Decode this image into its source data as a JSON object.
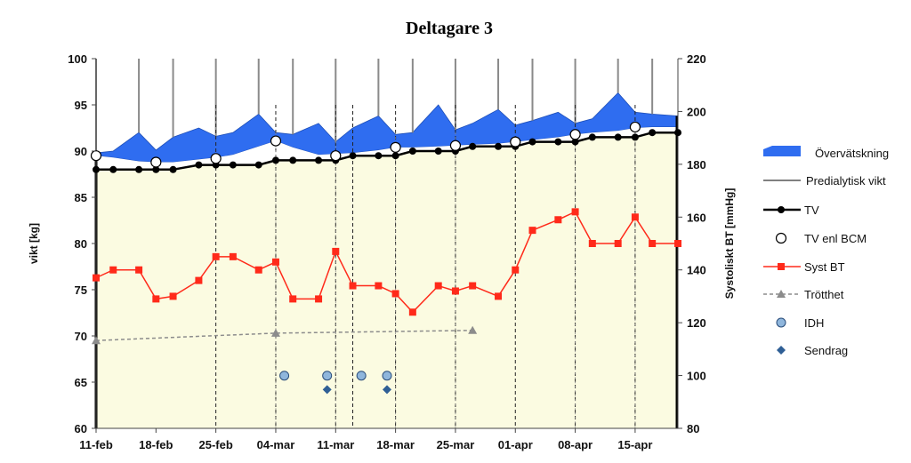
{
  "chart_data": {
    "type": "line",
    "title": "Deltagare 3",
    "xlabel": "",
    "ylabel": "vikt [kg]",
    "y2label": "Systoliskt BT [mmHg]",
    "xlim_days": [
      0,
      68
    ],
    "x_tick_labels": [
      "11-feb",
      "18-feb",
      "25-feb",
      "04-mar",
      "11-mar",
      "18-mar",
      "25-mar",
      "01-apr",
      "08-apr",
      "15-apr"
    ],
    "x_tick_days": [
      0,
      7,
      14,
      21,
      28,
      35,
      42,
      49,
      56,
      63
    ],
    "ylim": [
      60,
      100
    ],
    "y_ticks": [
      60,
      65,
      70,
      75,
      80,
      85,
      90,
      95,
      100
    ],
    "y2lim": [
      80,
      220
    ],
    "y2_ticks": [
      80,
      100,
      120,
      140,
      160,
      180,
      200,
      220
    ],
    "legend_position": "right",
    "series": [
      {
        "name": "Övervätskning",
        "kind": "area",
        "color": "#2f6df0",
        "x": [
          0,
          2,
          5,
          7,
          9,
          12,
          14,
          16,
          19,
          21,
          23,
          26,
          28,
          30,
          33,
          35,
          37,
          40,
          42,
          44,
          47,
          49,
          51,
          54,
          56,
          58,
          61,
          63,
          65,
          68
        ],
        "upper": [
          89.8,
          90,
          92,
          90.1,
          91.5,
          92.5,
          91.6,
          92,
          94,
          92,
          91.8,
          93,
          91,
          92.5,
          93.8,
          91.8,
          92,
          95,
          92.3,
          93,
          94.5,
          92.8,
          93.3,
          94.2,
          93,
          93.5,
          96.3,
          94.2,
          94,
          93.8
        ],
        "lower": [
          89.5,
          89.3,
          88.9,
          88.8,
          88.8,
          89.1,
          89.3,
          89.6,
          90.5,
          91.1,
          90.4,
          89.6,
          89.7,
          89.8,
          90.1,
          90.4,
          90.4,
          90.5,
          90.6,
          90.7,
          90.8,
          91,
          91.2,
          91.5,
          91.8,
          92,
          92.2,
          92.5,
          92.6,
          92.6
        ]
      },
      {
        "name": "Predialytisk vikt",
        "kind": "spikes",
        "color": "#8a8a8a",
        "x": [
          0,
          5,
          9,
          14,
          19,
          23,
          28,
          33,
          37,
          42,
          47,
          51,
          56,
          61,
          65
        ],
        "y": [
          100,
          100,
          100,
          100,
          100,
          100,
          100,
          100,
          100,
          100,
          100,
          100,
          100,
          100,
          100
        ]
      },
      {
        "name": "TV",
        "kind": "line",
        "color": "#000000",
        "x": [
          0,
          2,
          5,
          7,
          9,
          12,
          14,
          16,
          19,
          21,
          23,
          26,
          28,
          30,
          33,
          35,
          37,
          40,
          42,
          44,
          47,
          49,
          51,
          54,
          56,
          58,
          61,
          63,
          65,
          68
        ],
        "y": [
          88,
          88,
          88,
          88,
          88,
          88.5,
          88.5,
          88.5,
          88.5,
          89,
          89,
          89,
          89,
          89.5,
          89.5,
          89.5,
          90,
          90,
          90,
          90.5,
          90.5,
          90.5,
          91,
          91,
          91,
          91.5,
          91.5,
          91.5,
          92,
          92
        ]
      },
      {
        "name": "TV enl BCM",
        "kind": "markers",
        "color": "#ffffff",
        "x": [
          0,
          7,
          14,
          21,
          28,
          35,
          42,
          49,
          56,
          63
        ],
        "y": [
          89.5,
          88.8,
          89.2,
          91.1,
          89.5,
          90.4,
          90.6,
          91,
          91.8,
          92.6
        ]
      },
      {
        "name": "Syst BT",
        "kind": "line",
        "axis": "right",
        "color": "#ff2a1a",
        "x": [
          0,
          2,
          5,
          7,
          9,
          12,
          14,
          16,
          19,
          21,
          23,
          26,
          28,
          30,
          33,
          35,
          37,
          40,
          42,
          44,
          47,
          49,
          51,
          54,
          56,
          58,
          61,
          63,
          65,
          68
        ],
        "y": [
          137,
          140,
          140,
          129,
          130,
          136,
          145,
          145,
          140,
          143,
          129,
          129,
          147,
          134,
          134,
          131,
          124,
          134,
          132,
          134,
          130,
          140,
          155,
          159,
          162,
          150,
          150,
          160,
          150,
          150
        ]
      },
      {
        "name": "Trötthet",
        "kind": "line",
        "color": "#8c8c8c",
        "x": [
          0,
          21,
          44
        ],
        "y": [
          69.5,
          70.3,
          70.6
        ]
      },
      {
        "name": "IDH",
        "kind": "markers",
        "color": "#8fb6dc",
        "x": [
          22,
          27,
          31,
          34
        ],
        "y": [
          65.7,
          65.7,
          65.7,
          65.7
        ]
      },
      {
        "name": "Sendrag",
        "kind": "markers",
        "color": "#2f5f95",
        "x": [
          27,
          34
        ],
        "y": [
          64.2,
          64.2
        ]
      }
    ],
    "dashed_verticals_days": [
      14,
      21,
      28,
      30,
      35,
      42,
      49,
      56,
      63
    ],
    "extra_verticals_days": [
      21,
      28,
      35,
      42,
      56,
      63
    ]
  }
}
